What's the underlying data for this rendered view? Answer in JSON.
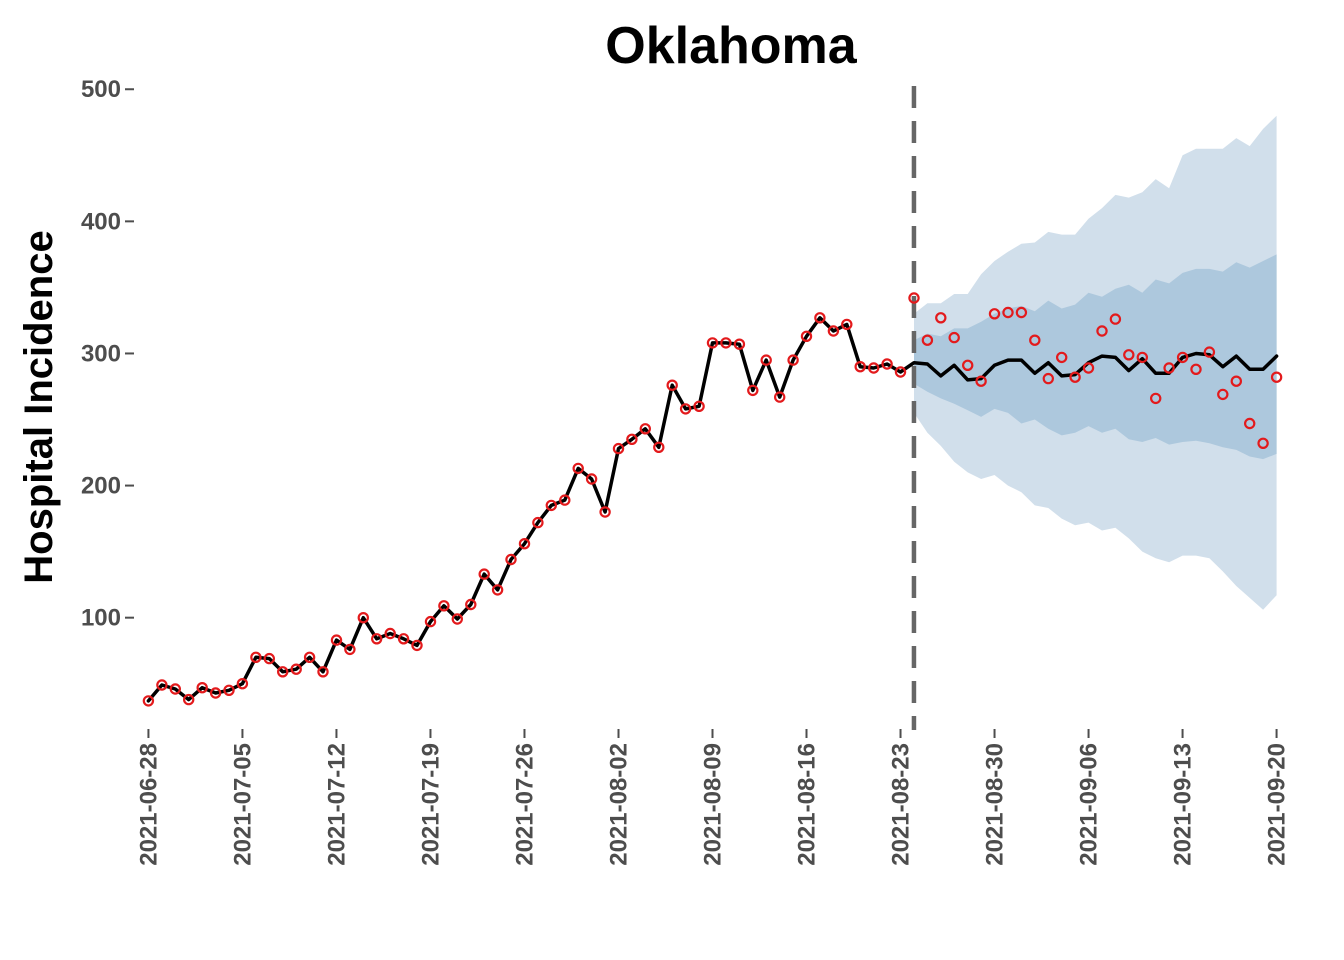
{
  "chart_data": {
    "type": "line",
    "title": "Oklahoma",
    "xlabel": "",
    "ylabel": "Hospital Incidence",
    "x_ticks": [
      "2021-06-28",
      "2021-07-05",
      "2021-07-12",
      "2021-07-19",
      "2021-07-26",
      "2021-08-02",
      "2021-08-09",
      "2021-08-16",
      "2021-08-23",
      "2021-08-30",
      "2021-09-06",
      "2021-09-13",
      "2021-09-20"
    ],
    "y_ticks": [
      100,
      200,
      300,
      400,
      500
    ],
    "ylim": [
      18,
      507
    ],
    "xlim": [
      "2021-06-27",
      "2021-09-21"
    ],
    "grid": false,
    "forecast_date": "2021-08-24",
    "colors": {
      "fit_line": "#000000",
      "observed_points": "#e31a1c",
      "band_inner": "#adc8dd",
      "band_outer": "#d1dfeb",
      "forecast_divider": "#666666",
      "axis_ticks": "#4d4d4d"
    },
    "series": [
      {
        "name": "",
        "role": "observed",
        "x": [
          "2021-06-28",
          "2021-06-29",
          "2021-06-30",
          "2021-07-01",
          "2021-07-02",
          "2021-07-03",
          "2021-07-04",
          "2021-07-05",
          "2021-07-06",
          "2021-07-07",
          "2021-07-08",
          "2021-07-09",
          "2021-07-10",
          "2021-07-11",
          "2021-07-12",
          "2021-07-13",
          "2021-07-14",
          "2021-07-15",
          "2021-07-16",
          "2021-07-17",
          "2021-07-18",
          "2021-07-19",
          "2021-07-20",
          "2021-07-21",
          "2021-07-22",
          "2021-07-23",
          "2021-07-24",
          "2021-07-25",
          "2021-07-26",
          "2021-07-27",
          "2021-07-28",
          "2021-07-29",
          "2021-07-30",
          "2021-07-31",
          "2021-08-01",
          "2021-08-02",
          "2021-08-03",
          "2021-08-04",
          "2021-08-05",
          "2021-08-06",
          "2021-08-07",
          "2021-08-08",
          "2021-08-09",
          "2021-08-10",
          "2021-08-11",
          "2021-08-12",
          "2021-08-13",
          "2021-08-14",
          "2021-08-15",
          "2021-08-16",
          "2021-08-17",
          "2021-08-18",
          "2021-08-19",
          "2021-08-20",
          "2021-08-21",
          "2021-08-22",
          "2021-08-23",
          "2021-08-24",
          "2021-08-25",
          "2021-08-26",
          "2021-08-27",
          "2021-08-28",
          "2021-08-29",
          "2021-08-30",
          "2021-08-31",
          "2021-09-01",
          "2021-09-02",
          "2021-09-03",
          "2021-09-04",
          "2021-09-05",
          "2021-09-06",
          "2021-09-07",
          "2021-09-08",
          "2021-09-09",
          "2021-09-10",
          "2021-09-11",
          "2021-09-12",
          "2021-09-13",
          "2021-09-14",
          "2021-09-15",
          "2021-09-16",
          "2021-09-17",
          "2021-09-18",
          "2021-09-19",
          "2021-09-20"
        ],
        "values": [
          37,
          49,
          46,
          38,
          47,
          43,
          45,
          50,
          70,
          69,
          59,
          61,
          70,
          59,
          83,
          76,
          100,
          84,
          88,
          84,
          79,
          97,
          109,
          99,
          110,
          133,
          121,
          144,
          156,
          172,
          185,
          189,
          213,
          205,
          180,
          228,
          235,
          243,
          229,
          276,
          258,
          260,
          308,
          308,
          307,
          272,
          295,
          267,
          295,
          313,
          327,
          317,
          322,
          290,
          289,
          292,
          286,
          342,
          310,
          327,
          312,
          291,
          279,
          330,
          331,
          331,
          310,
          281,
          297,
          282,
          289,
          317,
          326,
          299,
          297,
          266,
          289,
          297,
          288,
          301,
          269,
          279,
          247,
          232,
          282
        ]
      },
      {
        "name": "",
        "role": "median",
        "x": [
          "2021-06-28",
          "2021-06-29",
          "2021-06-30",
          "2021-07-01",
          "2021-07-02",
          "2021-07-03",
          "2021-07-04",
          "2021-07-05",
          "2021-07-06",
          "2021-07-07",
          "2021-07-08",
          "2021-07-09",
          "2021-07-10",
          "2021-07-11",
          "2021-07-12",
          "2021-07-13",
          "2021-07-14",
          "2021-07-15",
          "2021-07-16",
          "2021-07-17",
          "2021-07-18",
          "2021-07-19",
          "2021-07-20",
          "2021-07-21",
          "2021-07-22",
          "2021-07-23",
          "2021-07-24",
          "2021-07-25",
          "2021-07-26",
          "2021-07-27",
          "2021-07-28",
          "2021-07-29",
          "2021-07-30",
          "2021-07-31",
          "2021-08-01",
          "2021-08-02",
          "2021-08-03",
          "2021-08-04",
          "2021-08-05",
          "2021-08-06",
          "2021-08-07",
          "2021-08-08",
          "2021-08-09",
          "2021-08-10",
          "2021-08-11",
          "2021-08-12",
          "2021-08-13",
          "2021-08-14",
          "2021-08-15",
          "2021-08-16",
          "2021-08-17",
          "2021-08-18",
          "2021-08-19",
          "2021-08-20",
          "2021-08-21",
          "2021-08-22",
          "2021-08-23",
          "2021-08-24",
          "2021-08-25",
          "2021-08-26",
          "2021-08-27",
          "2021-08-28",
          "2021-08-29",
          "2021-08-30",
          "2021-08-31",
          "2021-09-01",
          "2021-09-02",
          "2021-09-03",
          "2021-09-04",
          "2021-09-05",
          "2021-09-06",
          "2021-09-07",
          "2021-09-08",
          "2021-09-09",
          "2021-09-10",
          "2021-09-11",
          "2021-09-12",
          "2021-09-13",
          "2021-09-14",
          "2021-09-15",
          "2021-09-16",
          "2021-09-17",
          "2021-09-18",
          "2021-09-19",
          "2021-09-20"
        ],
        "values": [
          37,
          49,
          46,
          38,
          47,
          43,
          45,
          50,
          70,
          69,
          59,
          61,
          70,
          59,
          83,
          76,
          100,
          84,
          88,
          84,
          79,
          97,
          109,
          99,
          110,
          133,
          121,
          144,
          156,
          172,
          185,
          189,
          213,
          205,
          180,
          228,
          235,
          243,
          229,
          276,
          258,
          260,
          308,
          308,
          307,
          272,
          295,
          267,
          295,
          313,
          327,
          317,
          322,
          290,
          289,
          292,
          286,
          293,
          292,
          283,
          291,
          280,
          281,
          291,
          295,
          295,
          285,
          293,
          283,
          284,
          293,
          298,
          297,
          287,
          296,
          285,
          285,
          297,
          300,
          299,
          290,
          298,
          288,
          288,
          298
        ]
      }
    ],
    "bands": [
      {
        "name": "",
        "role": "outer",
        "x": [
          "2021-08-24",
          "2021-08-25",
          "2021-08-26",
          "2021-08-27",
          "2021-08-28",
          "2021-08-29",
          "2021-08-30",
          "2021-08-31",
          "2021-09-01",
          "2021-09-02",
          "2021-09-03",
          "2021-09-04",
          "2021-09-05",
          "2021-09-06",
          "2021-09-07",
          "2021-09-08",
          "2021-09-09",
          "2021-09-10",
          "2021-09-11",
          "2021-09-12",
          "2021-09-13",
          "2021-09-14",
          "2021-09-15",
          "2021-09-16",
          "2021-09-17",
          "2021-09-18",
          "2021-09-19",
          "2021-09-20"
        ],
        "lower": [
          255,
          240,
          230,
          218,
          210,
          205,
          208,
          200,
          195,
          185,
          183,
          175,
          170,
          172,
          166,
          168,
          160,
          150,
          145,
          142,
          147,
          147,
          145,
          135,
          124,
          115,
          106,
          117
        ],
        "upper": [
          330,
          338,
          338,
          345,
          345,
          360,
          370,
          377,
          383,
          384,
          392,
          390,
          390,
          402,
          410,
          420,
          418,
          422,
          432,
          425,
          450,
          455,
          455,
          455,
          463,
          457,
          470,
          480
        ]
      },
      {
        "name": "",
        "role": "inner",
        "x": [
          "2021-08-24",
          "2021-08-25",
          "2021-08-26",
          "2021-08-27",
          "2021-08-28",
          "2021-08-29",
          "2021-08-30",
          "2021-08-31",
          "2021-09-01",
          "2021-09-02",
          "2021-09-03",
          "2021-09-04",
          "2021-09-05",
          "2021-09-06",
          "2021-09-07",
          "2021-09-08",
          "2021-09-09",
          "2021-09-10",
          "2021-09-11",
          "2021-09-12",
          "2021-09-13",
          "2021-09-14",
          "2021-09-15",
          "2021-09-16",
          "2021-09-17",
          "2021-09-18",
          "2021-09-19",
          "2021-09-20"
        ],
        "lower": [
          277,
          271,
          266,
          262,
          257,
          252,
          258,
          255,
          247,
          250,
          243,
          238,
          240,
          245,
          240,
          243,
          235,
          233,
          236,
          231,
          233,
          234,
          232,
          229,
          227,
          222,
          220,
          224
        ],
        "upper": [
          310,
          315,
          313,
          319,
          319,
          324,
          330,
          334,
          336,
          332,
          340,
          334,
          337,
          346,
          343,
          349,
          352,
          346,
          356,
          353,
          361,
          364,
          364,
          362,
          369,
          365,
          370,
          375
        ]
      }
    ]
  }
}
